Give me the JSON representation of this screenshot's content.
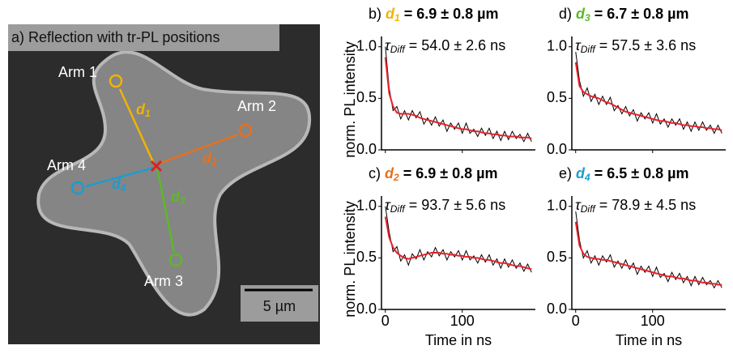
{
  "panel_a": {
    "title": "a) Reflection with tr-PL positions",
    "arms": [
      "Arm 1",
      "Arm 2",
      "Arm 3",
      "Arm 4"
    ],
    "distances": [
      {
        "symbol": "d",
        "subscript": "1"
      },
      {
        "symbol": "d",
        "subscript": "2"
      },
      {
        "symbol": "d",
        "subscript": "3"
      },
      {
        "symbol": "d",
        "subscript": "4"
      }
    ],
    "scale_bar": "5 µm"
  },
  "chart_data": [
    {
      "type": "line",
      "panel_label": "b)",
      "title_symbol": "d",
      "title_subscript": "1",
      "title_rest": " = 6.9 ± 0.8 µm",
      "title_color": "#f0b400",
      "annotation_symbol": "τ",
      "annotation_subscript": "Diff",
      "annotation_rest": " = 54.0 ± 2.6 ns",
      "ylabel": "norm. PL intensity",
      "xtick_labels": false,
      "x": [
        0,
        5,
        10,
        15,
        20,
        25,
        30,
        35,
        40,
        45,
        50,
        55,
        60,
        65,
        70,
        75,
        80,
        85,
        90,
        95,
        100,
        105,
        110,
        115,
        120,
        125,
        130,
        135,
        140,
        145,
        150,
        155,
        160,
        165,
        170,
        175,
        180,
        185,
        190
      ],
      "xlim": [
        -5,
        195
      ],
      "xticks": [
        0,
        100
      ],
      "ylim": [
        0,
        1.1
      ],
      "yticks": [
        {
          "value": 0,
          "label": "0.0"
        },
        {
          "value": 0.5,
          "label": "0.5"
        },
        {
          "value": 1,
          "label": "1.0"
        }
      ],
      "series": [
        {
          "color": "#000000",
          "values": [
            1.0,
            0.6,
            0.38,
            0.42,
            0.3,
            0.38,
            0.29,
            0.38,
            0.31,
            0.37,
            0.25,
            0.31,
            0.24,
            0.32,
            0.23,
            0.29,
            0.18,
            0.26,
            0.2,
            0.26,
            0.16,
            0.26,
            0.16,
            0.2,
            0.13,
            0.21,
            0.14,
            0.21,
            0.11,
            0.18,
            0.09,
            0.18,
            0.1,
            0.18,
            0.11,
            0.15,
            0.08,
            0.16,
            0.08
          ]
        },
        {
          "color": "#e8202a",
          "values": [
            0.9,
            0.55,
            0.42,
            0.36,
            0.35,
            0.35,
            0.35,
            0.34,
            0.33,
            0.31,
            0.3,
            0.29,
            0.28,
            0.27,
            0.26,
            0.25,
            0.24,
            0.23,
            0.22,
            0.21,
            0.2,
            0.2,
            0.19,
            0.18,
            0.18,
            0.17,
            0.16,
            0.16,
            0.15,
            0.15,
            0.14,
            0.14,
            0.13,
            0.13,
            0.13,
            0.12,
            0.12,
            0.12,
            0.11
          ]
        }
      ]
    },
    {
      "type": "line",
      "panel_label": "c)",
      "title_symbol": "d",
      "title_subscript": "2",
      "title_rest": " = 6.9 ± 0.8 µm",
      "title_color": "#e8701a",
      "annotation_symbol": "τ",
      "annotation_subscript": "Diff",
      "annotation_rest": " = 93.7 ± 5.6 ns",
      "ylabel": "norm. PL intensity",
      "xlabel": "Time in ns",
      "xtick_labels": true,
      "x": [
        0,
        5,
        10,
        15,
        20,
        25,
        30,
        35,
        40,
        45,
        50,
        55,
        60,
        65,
        70,
        75,
        80,
        85,
        90,
        95,
        100,
        105,
        110,
        115,
        120,
        125,
        130,
        135,
        140,
        145,
        150,
        155,
        160,
        165,
        170,
        175,
        180,
        185,
        190
      ],
      "xlim": [
        -5,
        195
      ],
      "xticks": [
        0,
        100
      ],
      "ylim": [
        0,
        1.1
      ],
      "yticks": [
        {
          "value": 0,
          "label": "0.0"
        },
        {
          "value": 0.5,
          "label": "0.5"
        },
        {
          "value": 1,
          "label": "1.0"
        }
      ],
      "series": [
        {
          "color": "#000000",
          "values": [
            1.0,
            0.75,
            0.56,
            0.61,
            0.47,
            0.53,
            0.43,
            0.54,
            0.49,
            0.58,
            0.48,
            0.56,
            0.51,
            0.6,
            0.52,
            0.58,
            0.48,
            0.56,
            0.51,
            0.57,
            0.48,
            0.57,
            0.48,
            0.52,
            0.45,
            0.53,
            0.46,
            0.53,
            0.43,
            0.49,
            0.4,
            0.49,
            0.41,
            0.48,
            0.4,
            0.45,
            0.37,
            0.44,
            0.36
          ]
        },
        {
          "color": "#e8202a",
          "values": [
            0.9,
            0.7,
            0.6,
            0.55,
            0.52,
            0.5,
            0.49,
            0.5,
            0.51,
            0.52,
            0.53,
            0.54,
            0.55,
            0.55,
            0.55,
            0.54,
            0.54,
            0.53,
            0.53,
            0.52,
            0.52,
            0.51,
            0.51,
            0.5,
            0.5,
            0.49,
            0.48,
            0.48,
            0.47,
            0.46,
            0.45,
            0.45,
            0.44,
            0.43,
            0.42,
            0.42,
            0.41,
            0.4,
            0.39
          ]
        }
      ]
    },
    {
      "type": "line",
      "panel_label": "d)",
      "title_symbol": "d",
      "title_subscript": "3",
      "title_rest": " = 6.7 ± 0.8 µm",
      "title_color": "#5cb82a",
      "annotation_symbol": "τ",
      "annotation_subscript": "Diff",
      "annotation_rest": " = 57.5 ± 3.6 ns",
      "xtick_labels": false,
      "x": [
        0,
        5,
        10,
        15,
        20,
        25,
        30,
        35,
        40,
        45,
        50,
        55,
        60,
        65,
        70,
        75,
        80,
        85,
        90,
        95,
        100,
        105,
        110,
        115,
        120,
        125,
        130,
        135,
        140,
        145,
        150,
        155,
        160,
        165,
        170,
        175,
        180,
        185,
        190
      ],
      "xlim": [
        -5,
        195
      ],
      "xticks": [
        0,
        100
      ],
      "ylim": [
        0,
        1.1
      ],
      "yticks": [
        {
          "value": 0,
          "label": "0.0"
        },
        {
          "value": 0.5,
          "label": "0.5"
        },
        {
          "value": 1,
          "label": "1.0"
        }
      ],
      "series": [
        {
          "color": "#000000",
          "values": [
            0.95,
            0.67,
            0.52,
            0.6,
            0.47,
            0.54,
            0.44,
            0.52,
            0.44,
            0.51,
            0.38,
            0.43,
            0.35,
            0.42,
            0.33,
            0.39,
            0.28,
            0.36,
            0.3,
            0.36,
            0.26,
            0.35,
            0.25,
            0.3,
            0.22,
            0.3,
            0.24,
            0.3,
            0.2,
            0.27,
            0.18,
            0.27,
            0.19,
            0.27,
            0.19,
            0.24,
            0.16,
            0.24,
            0.16
          ]
        },
        {
          "color": "#e8202a",
          "values": [
            0.85,
            0.62,
            0.56,
            0.54,
            0.52,
            0.51,
            0.5,
            0.48,
            0.46,
            0.45,
            0.43,
            0.41,
            0.39,
            0.37,
            0.36,
            0.35,
            0.34,
            0.33,
            0.32,
            0.31,
            0.3,
            0.29,
            0.28,
            0.28,
            0.27,
            0.26,
            0.26,
            0.25,
            0.24,
            0.24,
            0.23,
            0.23,
            0.22,
            0.22,
            0.21,
            0.21,
            0.2,
            0.2,
            0.19
          ]
        }
      ]
    },
    {
      "type": "line",
      "panel_label": "e)",
      "title_symbol": "d",
      "title_subscript": "4",
      "title_rest": " = 6.5 ± 0.8 µm",
      "title_color": "#1e9bd0",
      "annotation_symbol": "τ",
      "annotation_subscript": "Diff",
      "annotation_rest": " = 78.9 ± 4.5 ns",
      "xlabel": "Time in ns",
      "xtick_labels": true,
      "x": [
        0,
        5,
        10,
        15,
        20,
        25,
        30,
        35,
        40,
        45,
        50,
        55,
        60,
        65,
        70,
        75,
        80,
        85,
        90,
        95,
        100,
        105,
        110,
        115,
        120,
        125,
        130,
        135,
        140,
        145,
        150,
        155,
        160,
        165,
        170,
        175,
        180,
        185,
        190
      ],
      "xlim": [
        -5,
        195
      ],
      "xticks": [
        0,
        100
      ],
      "ylim": [
        0,
        1.1
      ],
      "yticks": [
        {
          "value": 0,
          "label": "0.0"
        },
        {
          "value": 0.5,
          "label": "0.5"
        },
        {
          "value": 1,
          "label": "1.0"
        }
      ],
      "series": [
        {
          "color": "#000000",
          "values": [
            0.95,
            0.67,
            0.5,
            0.57,
            0.45,
            0.52,
            0.43,
            0.52,
            0.46,
            0.53,
            0.41,
            0.47,
            0.4,
            0.48,
            0.39,
            0.45,
            0.34,
            0.42,
            0.36,
            0.42,
            0.32,
            0.41,
            0.31,
            0.35,
            0.27,
            0.36,
            0.29,
            0.35,
            0.26,
            0.32,
            0.23,
            0.32,
            0.24,
            0.31,
            0.24,
            0.28,
            0.21,
            0.28,
            0.21
          ]
        },
        {
          "color": "#e8202a",
          "values": [
            0.85,
            0.62,
            0.54,
            0.51,
            0.5,
            0.49,
            0.49,
            0.48,
            0.48,
            0.47,
            0.46,
            0.45,
            0.44,
            0.43,
            0.42,
            0.41,
            0.4,
            0.39,
            0.38,
            0.37,
            0.36,
            0.35,
            0.34,
            0.33,
            0.32,
            0.32,
            0.31,
            0.3,
            0.3,
            0.29,
            0.28,
            0.28,
            0.27,
            0.26,
            0.26,
            0.25,
            0.25,
            0.24,
            0.24
          ]
        }
      ]
    }
  ]
}
